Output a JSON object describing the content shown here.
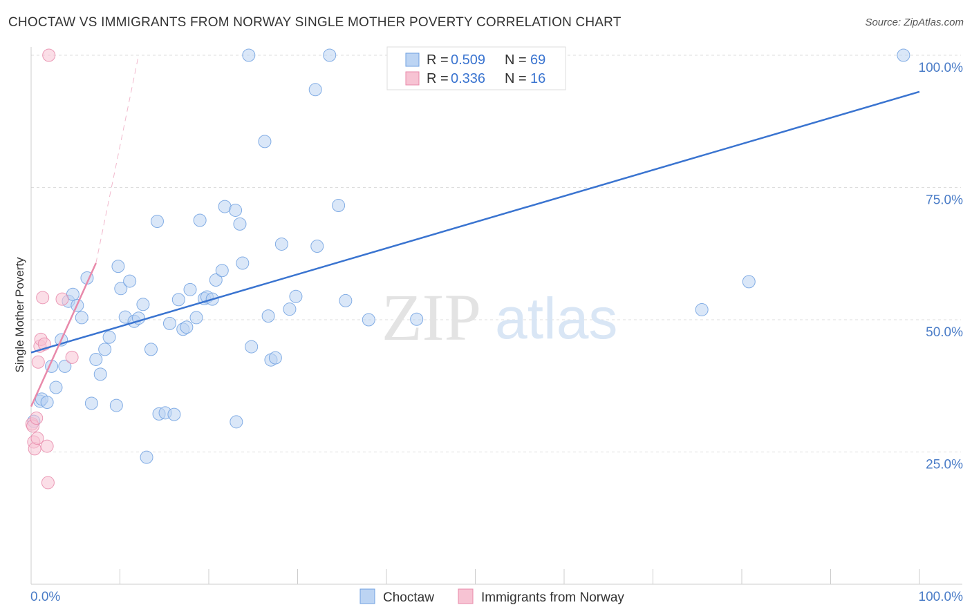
{
  "title": "CHOCTAW VS IMMIGRANTS FROM NORWAY SINGLE MOTHER POVERTY CORRELATION CHART",
  "source": "Source: ZipAtlas.com",
  "watermark": {
    "zip": "ZIP",
    "atlas": "atlas"
  },
  "chart_data": {
    "type": "scatter",
    "title": "CHOCTAW VS IMMIGRANTS FROM NORWAY SINGLE MOTHER POVERTY CORRELATION CHART",
    "xlabel": "",
    "ylabel": "Single Mother Poverty",
    "xlim": [
      0,
      100
    ],
    "ylim": [
      0,
      100
    ],
    "x_tick_labels": [
      "0.0%",
      "100.0%"
    ],
    "y_ticks": [
      25,
      50,
      75,
      100
    ],
    "y_tick_labels": [
      "25.0%",
      "50.0%",
      "75.0%",
      "100.0%"
    ],
    "grid": "horizontal dashed",
    "legend_position": "top-center",
    "legend": [
      {
        "name": "Choctaw",
        "r_label": "R =",
        "r": "0.509",
        "n_label": "N =",
        "n": "69",
        "color": "#6fa0e0",
        "fill": "#bcd4f3"
      },
      {
        "name": "Immigrants from Norway",
        "r_label": "R =",
        "r": "0.336",
        "n_label": "N =",
        "n": "16",
        "color": "#e889aa",
        "fill": "#f7c3d3"
      }
    ],
    "series": [
      {
        "name": "Choctaw",
        "color": "#6fa0e0",
        "points": [
          [
            0.3,
            30.8
          ],
          [
            1.0,
            34.6
          ],
          [
            1.2,
            35.0
          ],
          [
            1.8,
            34.4
          ],
          [
            2.3,
            41.2
          ],
          [
            2.8,
            37.2
          ],
          [
            3.4,
            46.2
          ],
          [
            3.8,
            41.2
          ],
          [
            4.2,
            53.5
          ],
          [
            4.7,
            54.8
          ],
          [
            5.2,
            52.7
          ],
          [
            5.7,
            50.4
          ],
          [
            6.3,
            57.9
          ],
          [
            6.8,
            34.2
          ],
          [
            7.3,
            42.5
          ],
          [
            7.8,
            39.7
          ],
          [
            8.3,
            44.4
          ],
          [
            8.8,
            46.7
          ],
          [
            9.6,
            33.8
          ],
          [
            9.8,
            60.1
          ],
          [
            10.1,
            55.9
          ],
          [
            10.6,
            50.5
          ],
          [
            11.1,
            57.3
          ],
          [
            11.6,
            49.7
          ],
          [
            12.1,
            50.3
          ],
          [
            12.6,
            52.9
          ],
          [
            13.0,
            24.0
          ],
          [
            13.5,
            44.4
          ],
          [
            14.2,
            68.6
          ],
          [
            14.4,
            32.2
          ],
          [
            15.1,
            32.4
          ],
          [
            15.6,
            49.3
          ],
          [
            16.1,
            32.1
          ],
          [
            16.6,
            53.8
          ],
          [
            17.1,
            48.2
          ],
          [
            17.5,
            48.6
          ],
          [
            17.9,
            55.7
          ],
          [
            18.6,
            50.4
          ],
          [
            19.0,
            68.8
          ],
          [
            19.5,
            54.0
          ],
          [
            19.8,
            54.3
          ],
          [
            20.4,
            53.9
          ],
          [
            20.8,
            57.5
          ],
          [
            21.5,
            59.3
          ],
          [
            21.8,
            71.4
          ],
          [
            23.0,
            70.7
          ],
          [
            23.1,
            30.7
          ],
          [
            23.5,
            68.1
          ],
          [
            23.8,
            60.7
          ],
          [
            24.5,
            100.0
          ],
          [
            24.8,
            44.9
          ],
          [
            26.3,
            83.7
          ],
          [
            26.7,
            50.7
          ],
          [
            27.0,
            42.4
          ],
          [
            27.5,
            42.8
          ],
          [
            28.2,
            64.3
          ],
          [
            29.1,
            52.0
          ],
          [
            29.8,
            54.4
          ],
          [
            32.0,
            93.5
          ],
          [
            32.2,
            63.9
          ],
          [
            33.6,
            100.0
          ],
          [
            34.6,
            71.6
          ],
          [
            35.4,
            53.6
          ],
          [
            38.0,
            50.0
          ],
          [
            43.4,
            50.1
          ],
          [
            45.0,
            100.0
          ],
          [
            75.5,
            51.9
          ],
          [
            80.8,
            57.2
          ],
          [
            98.2,
            100.0
          ]
        ]
      },
      {
        "name": "Immigrants from Norway",
        "color": "#e889aa",
        "points": [
          [
            0.1,
            30.3
          ],
          [
            0.2,
            29.9
          ],
          [
            0.3,
            26.9
          ],
          [
            0.4,
            25.6
          ],
          [
            0.6,
            31.4
          ],
          [
            0.7,
            27.6
          ],
          [
            0.8,
            42.0
          ],
          [
            1.0,
            45.0
          ],
          [
            1.1,
            46.3
          ],
          [
            1.3,
            54.2
          ],
          [
            1.5,
            45.4
          ],
          [
            1.8,
            26.1
          ],
          [
            1.9,
            19.2
          ],
          [
            2.0,
            100.0
          ],
          [
            3.5,
            53.9
          ],
          [
            4.6,
            42.9
          ]
        ]
      }
    ],
    "trend_lines": [
      {
        "series": "Choctaw",
        "x": [
          0,
          100
        ],
        "y": [
          43.8,
          93.1
        ],
        "style": "solid"
      },
      {
        "series": "Immigrants from Norway",
        "x": [
          0,
          7.3
        ],
        "y": [
          33.6,
          60.7
        ],
        "style": "solid"
      },
      {
        "series": "Immigrants from Norway",
        "x": [
          7.3,
          12.1
        ],
        "y": [
          60.7,
          100.0
        ],
        "style": "dashed"
      }
    ]
  }
}
